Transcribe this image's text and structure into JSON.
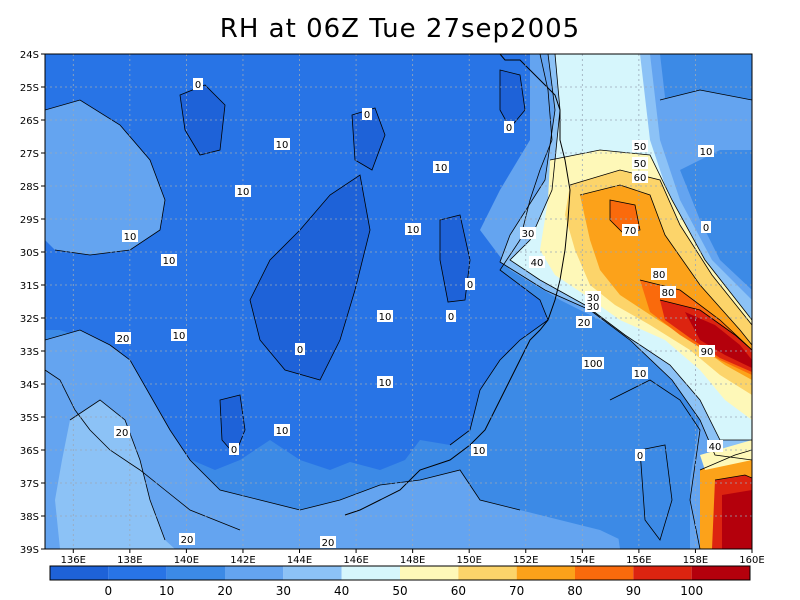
{
  "title": "RH at 06Z Tue 27sep2005",
  "map": {
    "lat_labels": [
      "24S",
      "25S",
      "26S",
      "27S",
      "28S",
      "29S",
      "30S",
      "31S",
      "32S",
      "33S",
      "34S",
      "35S",
      "36S",
      "37S",
      "38S",
      "39S"
    ],
    "lon_labels": [
      "136E",
      "138E",
      "140E",
      "142E",
      "144E",
      "146E",
      "148E",
      "150E",
      "152E",
      "154E",
      "156E",
      "158E",
      "160E"
    ],
    "lon_range": [
      135,
      160
    ],
    "lat_range": [
      -24,
      -39
    ],
    "gridlines": "dotted"
  },
  "colorbar": {
    "colors": [
      "#1e62d8",
      "#2874e6",
      "#3c8ae6",
      "#64a4f0",
      "#8cc2f6",
      "#d6f6fc",
      "#fef8b8",
      "#fcd46a",
      "#fca21a",
      "#fa6a0c",
      "#dc2410",
      "#b4000c"
    ],
    "labels": [
      "0",
      "10",
      "20",
      "30",
      "40",
      "50",
      "60",
      "70",
      "80",
      "90",
      "100"
    ]
  },
  "contour_labels": [
    "0",
    "0",
    "0",
    "0",
    "0",
    "0",
    "0",
    "0",
    "0",
    "10",
    "10",
    "10",
    "10",
    "10",
    "10",
    "10",
    "10",
    "10",
    "10",
    "10",
    "10",
    "10",
    "20",
    "20",
    "20",
    "20",
    "20",
    "30",
    "30",
    "30",
    "40",
    "40",
    "50",
    "50",
    "60",
    "70",
    "80",
    "80",
    "90",
    "100"
  ]
}
